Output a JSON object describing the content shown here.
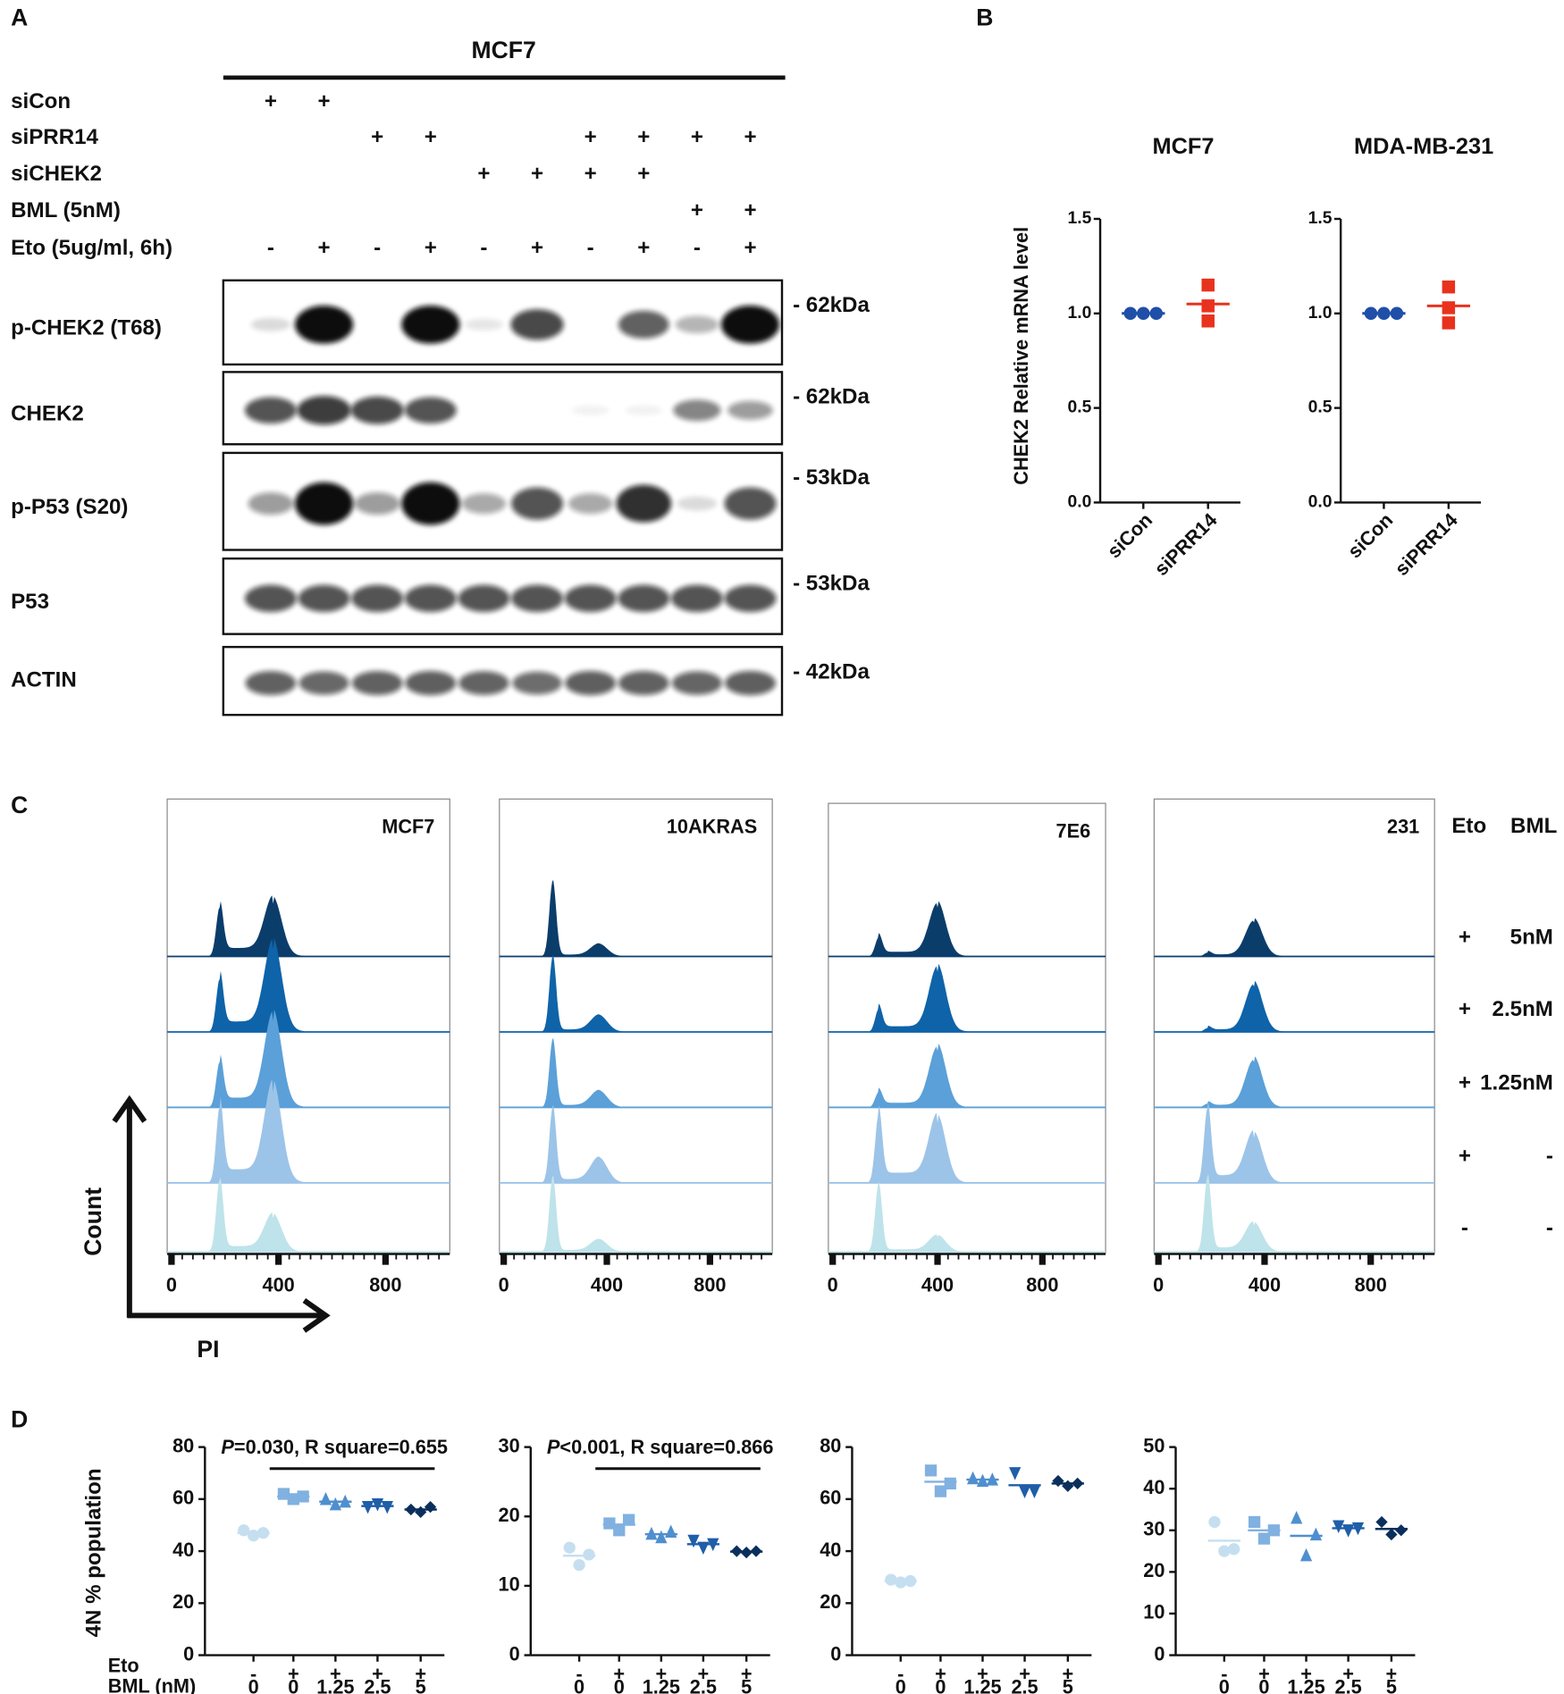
{
  "panel_labels": [
    "A",
    "B",
    "C",
    "D"
  ],
  "blot": {
    "cell_line": "MCF7",
    "conditions": [
      {
        "label": "siCon",
        "signs": [
          "+",
          "+",
          null,
          null,
          null,
          null,
          null,
          null,
          null,
          null
        ]
      },
      {
        "label": "siPRR14",
        "signs": [
          null,
          null,
          "+",
          "+",
          null,
          null,
          "+",
          "+",
          "+",
          "+"
        ]
      },
      {
        "label": "siCHEK2",
        "signs": [
          null,
          null,
          null,
          null,
          "+",
          "+",
          "+",
          "+",
          null,
          null
        ]
      },
      {
        "label": "BML (5nM)",
        "signs": [
          null,
          null,
          null,
          null,
          null,
          null,
          null,
          null,
          "+",
          "+"
        ]
      },
      {
        "label": "Eto (5ug/ml, 6h)",
        "signs": [
          "-",
          "+",
          "-",
          "+",
          "-",
          "+",
          "-",
          "+",
          "-",
          "+"
        ]
      }
    ],
    "bands": [
      {
        "label": "p-CHEK2 (T68)",
        "size": "- 62kDa",
        "intensity": [
          0.15,
          1,
          0,
          1,
          0.1,
          0.75,
          0,
          0.65,
          0.3,
          1
        ]
      },
      {
        "label": "CHEK2",
        "size": "- 62kDa",
        "intensity": [
          0.7,
          0.8,
          0.75,
          0.7,
          0,
          0,
          0.05,
          0.05,
          0.5,
          0.4
        ]
      },
      {
        "label": "p-P53 (S20)",
        "size": "- 53kDa",
        "intensity": [
          0.4,
          1,
          0.4,
          1,
          0.35,
          0.7,
          0.35,
          0.85,
          0.15,
          0.7
        ]
      },
      {
        "label": "P53",
        "size": "- 53kDa",
        "intensity": [
          0.7,
          0.7,
          0.7,
          0.7,
          0.7,
          0.7,
          0.7,
          0.7,
          0.7,
          0.7
        ]
      },
      {
        "label": "ACTIN",
        "size": "- 42kDa",
        "intensity": [
          0.65,
          0.62,
          0.65,
          0.66,
          0.64,
          0.6,
          0.66,
          0.65,
          0.63,
          0.66
        ]
      }
    ]
  },
  "qpcr": {
    "y_label": "CHEK2 Relative mRNA level",
    "ylim": [
      0,
      1.5
    ],
    "yticks": [
      {
        "value": 0,
        "label": "0.0"
      },
      {
        "value": 0.5,
        "label": "0.5"
      },
      {
        "value": 1,
        "label": "1.0"
      },
      {
        "value": 1.5,
        "label": "1.5"
      }
    ],
    "categories": [
      "siCon",
      "siPRR14"
    ],
    "colors": [
      "#1f4fa8",
      "#e8321e"
    ],
    "plots": [
      {
        "title": "MCF7",
        "values": [
          [
            1,
            1,
            1
          ],
          [
            1.15,
            1.04,
            0.96
          ]
        ]
      },
      {
        "title": "MDA-MB-231",
        "values": [
          [
            1,
            1,
            1
          ],
          [
            1.14,
            1.03,
            0.95
          ]
        ]
      }
    ]
  },
  "flow": {
    "xlim": [
      0,
      1000
    ],
    "xticks": [
      0,
      400,
      800
    ],
    "axis_labels": {
      "y": "Count",
      "x": "PI"
    },
    "header": [
      "Eto",
      "BML"
    ],
    "rows": [
      [
        "+",
        "5nM"
      ],
      [
        "+",
        "2.5nM"
      ],
      [
        "+",
        "1.25nM"
      ],
      [
        "+",
        "-"
      ],
      [
        "-",
        "-"
      ]
    ],
    "colors": [
      "#0b3d6b",
      "#0f63a8",
      "#5ba0d8",
      "#9cc4e8",
      "#bfe3ea"
    ],
    "panels": [
      {
        "title": "MCF7",
        "g1": 180,
        "g2": 380,
        "heights": [
          [
            65,
            70
          ],
          [
            70,
            110
          ],
          [
            60,
            115
          ],
          [
            100,
            120
          ],
          [
            95,
            45
          ]
        ]
      },
      {
        "title": "10AKRAS",
        "g1": 190,
        "g2": 370,
        "heights": [
          [
            100,
            15
          ],
          [
            100,
            20
          ],
          [
            90,
            20
          ],
          [
            100,
            30
          ],
          [
            100,
            15
          ]
        ]
      },
      {
        "title": "7E6",
        "g1": 175,
        "g2": 400,
        "heights": [
          [
            25,
            65
          ],
          [
            30,
            80
          ],
          [
            20,
            75
          ],
          [
            90,
            80
          ],
          [
            90,
            20
          ]
        ]
      },
      {
        "title": "231",
        "g1": 185,
        "g2": 360,
        "heights": [
          [
            5,
            45
          ],
          [
            5,
            60
          ],
          [
            5,
            60
          ],
          [
            100,
            60
          ],
          [
            100,
            35
          ]
        ]
      }
    ]
  },
  "fraction": {
    "y_label": "4N % population",
    "row_labels": [
      "Eto",
      "BML (nM)"
    ],
    "eto": [
      "-",
      "+",
      "+",
      "+",
      "+"
    ],
    "bml": [
      "0",
      "0",
      "1.25",
      "2.5",
      "5"
    ],
    "colors": [
      "#c5dff0",
      "#80b1e0",
      "#4f8fcf",
      "#1f5ea8",
      "#0a2f5c"
    ],
    "plots": [
      {
        "ylim": [
          0,
          80
        ],
        "yticks": [
          0,
          20,
          40,
          60,
          80
        ],
        "annotation": {
          "symbol": "P",
          "text": "=0.030, R square=0.655"
        },
        "values": [
          [
            48,
            46,
            47
          ],
          [
            62,
            60,
            61
          ],
          [
            60,
            58,
            59
          ],
          [
            57,
            58,
            57
          ],
          [
            56,
            55,
            57
          ]
        ]
      },
      {
        "ylim": [
          0,
          30
        ],
        "yticks": [
          0,
          10,
          20,
          30
        ],
        "annotation": {
          "symbol": "P",
          "text": "<0.001, R square=0.866"
        },
        "values": [
          [
            15.5,
            13,
            14.5
          ],
          [
            19,
            18,
            19.5
          ],
          [
            17.5,
            17,
            17.8
          ],
          [
            16.5,
            15.5,
            16
          ],
          [
            15,
            14.8,
            15
          ]
        ]
      },
      {
        "ylim": [
          0,
          80
        ],
        "yticks": [
          0,
          20,
          40,
          60,
          80
        ],
        "values": [
          [
            29,
            28,
            28.5
          ],
          [
            71,
            63,
            66
          ],
          [
            68,
            67,
            67.5
          ],
          [
            70,
            63,
            63
          ],
          [
            67,
            65,
            66
          ]
        ]
      },
      {
        "ylim": [
          0,
          50
        ],
        "yticks": [
          0,
          10,
          20,
          30,
          40,
          50
        ],
        "values": [
          [
            32,
            25,
            25.5
          ],
          [
            32,
            28,
            30
          ],
          [
            33,
            24,
            29
          ],
          [
            31,
            30,
            30.5
          ],
          [
            32,
            29,
            30
          ]
        ]
      }
    ]
  }
}
